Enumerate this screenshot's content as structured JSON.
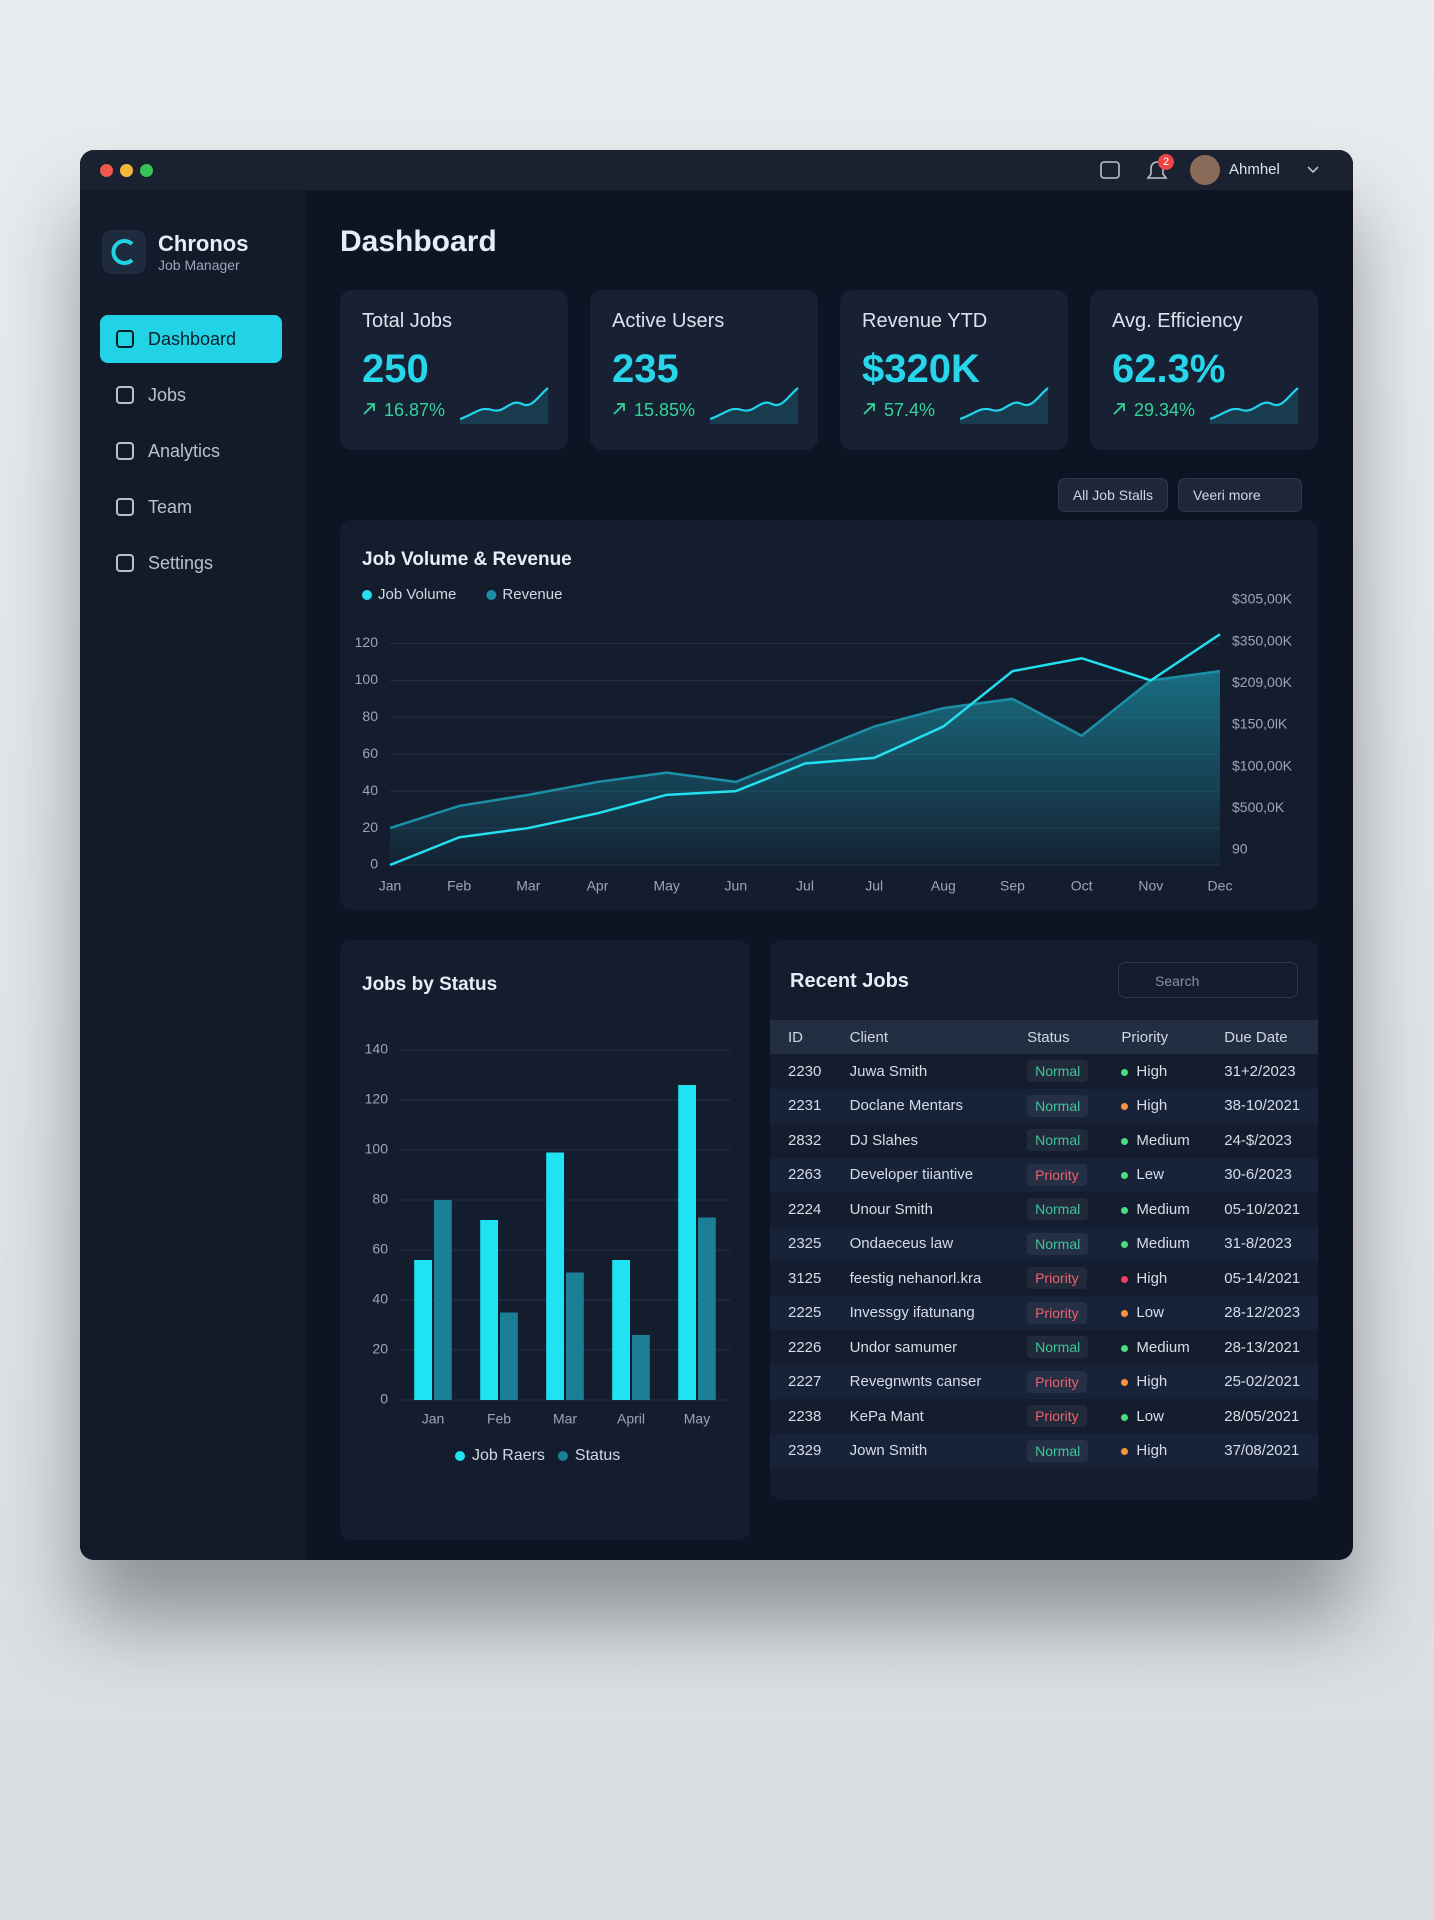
{
  "window": {
    "user": "Ahmhel",
    "notifications": 2
  },
  "sidebar": {
    "brand": "Chronos",
    "subtitle": "Job Manager",
    "nav": [
      "Dashboard",
      "Jobs",
      "Analytics",
      "Team",
      "Settings"
    ]
  },
  "page_title": "Dashboard",
  "kpis": [
    {
      "label": "Total Jobs",
      "value": 250,
      "change": "16.87%"
    },
    {
      "label": "Active Users",
      "value": 235,
      "change": "15.85%"
    },
    {
      "label": "Revenue YTD",
      "value": "$320K",
      "change": "57.4%"
    },
    {
      "label": "Avg. Efficiency",
      "value": "62.3%",
      "change": "29.34%"
    }
  ],
  "filters": {
    "status": "All Job Stalls",
    "more": "Veeri more"
  },
  "chart_data": [
    {
      "type": "line",
      "title": "Job Volume & Revenue",
      "categories": [
        "Jan",
        "Feb",
        "Mar",
        "Apr",
        "May",
        "Jun",
        "Jul",
        "Jul",
        "Aug",
        "Sep",
        "Oct",
        "Nov",
        "Dec"
      ],
      "series": [
        {
          "name": "Job Volume",
          "color": "#22e0f0",
          "values": [
            0,
            15,
            20,
            28,
            38,
            40,
            55,
            58,
            75,
            105,
            112,
            100,
            125
          ]
        },
        {
          "name": "Revenue",
          "color": "#1b8fa5",
          "area": true,
          "values": [
            20,
            32,
            38,
            45,
            50,
            45,
            60,
            75,
            85,
            90,
            70,
            100,
            105
          ]
        }
      ],
      "ylim": [
        0,
        130
      ],
      "yticks": [
        0,
        20,
        40,
        60,
        80,
        100,
        120
      ],
      "grid": true,
      "y2_labels": [
        "$305,00K",
        "$350,00K",
        "$209,00K",
        "$150,0lK",
        "$100,00K",
        "$500,0K",
        "90"
      ]
    },
    {
      "type": "bar",
      "title": "Jobs by Status",
      "categories": [
        "Jan",
        "Feb",
        "Mar",
        "April",
        "May"
      ],
      "series": [
        {
          "name": "Job Raers",
          "color": "#1fe3f2",
          "values": [
            56,
            72,
            99,
            56,
            126
          ]
        },
        {
          "name": "Status",
          "color": "#1c7f98",
          "values": [
            80,
            35,
            51,
            26,
            73
          ]
        }
      ],
      "ylim": [
        0,
        140
      ],
      "yticks": [
        0,
        20,
        40,
        60,
        80,
        100,
        120,
        140
      ],
      "grid": true
    }
  ],
  "recent_jobs": {
    "title": "Recent Jobs",
    "search": "Search",
    "columns": [
      "ID",
      "Client",
      "Status",
      "Priority",
      "Due Date"
    ],
    "rows": [
      {
        "id": 2230,
        "client": "Juwa Smith",
        "status": "Normal",
        "priority": "High",
        "due": "31+2/2023",
        "status_color": "#3fc59a",
        "priority_color": "#4ade80"
      },
      {
        "id": 2231,
        "client": "Doclane Mentars",
        "status": "Normal",
        "priority": "High",
        "due": "38-10/2021",
        "status_color": "#3fc59a",
        "priority_color": "#fb923c"
      },
      {
        "id": 2832,
        "client": "DJ Slahes",
        "status": "Normal",
        "priority": "Medium",
        "due": "24-$/2023",
        "status_color": "#3fc59a",
        "priority_color": "#4ade80"
      },
      {
        "id": 2263,
        "client": "Developer tiiantive",
        "status": "Priority",
        "priority": "Lew",
        "due": "30-6/2023",
        "status_color": "#f0616d",
        "priority_color": "#4ade80"
      },
      {
        "id": 2224,
        "client": "Unour Smith",
        "status": "Normal",
        "priority": "Medium",
        "due": "05-10/2021",
        "status_color": "#3fc59a",
        "priority_color": "#4ade80"
      },
      {
        "id": 2325,
        "client": "Ondaeceus law",
        "status": "Normal",
        "priority": "Medium",
        "due": "31-8/2023",
        "status_color": "#3fc59a",
        "priority_color": "#4ade80"
      },
      {
        "id": 3125,
        "client": "feestig nehanorl.kra",
        "status": "Priority",
        "priority": "High",
        "due": "05-14/2021",
        "status_color": "#f0616d",
        "priority_color": "#f43f5e"
      },
      {
        "id": 2225,
        "client": "Invessgy ifatunang",
        "status": "Priority",
        "priority": "Low",
        "due": "28-12/2023",
        "status_color": "#f0616d",
        "priority_color": "#fb923c"
      },
      {
        "id": 2226,
        "client": "Undor samumer",
        "status": "Normal",
        "priority": "Medium",
        "due": "28-13/2021",
        "status_color": "#3fc59a",
        "priority_color": "#4ade80"
      },
      {
        "id": 2227,
        "client": "Revegnwnts canser",
        "status": "Priority",
        "priority": "High",
        "due": "25-02/2021",
        "status_color": "#f0616d",
        "priority_color": "#fb923c"
      },
      {
        "id": 2238,
        "client": "KePa Mant",
        "status": "Priority",
        "priority": "Low",
        "due": "28/05/2021",
        "status_color": "#f0616d",
        "priority_color": "#4ade80"
      },
      {
        "id": 2329,
        "client": "Jown Smith",
        "status": "Normal",
        "priority": "High",
        "due": "37/08/2021",
        "status_color": "#3fc59a",
        "priority_color": "#fb923c"
      }
    ]
  }
}
